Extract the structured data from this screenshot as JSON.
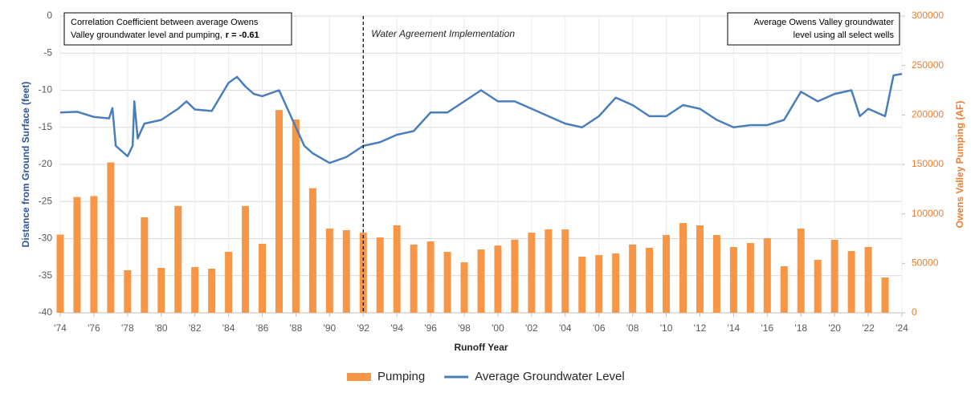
{
  "chart_data": {
    "type": "combo",
    "x_label": "Runoff Year",
    "y_label": "Distance from Ground Surface (feet)",
    "y2_label": "Owens Valley Pumping (AF)",
    "xlim": [
      1974,
      2024
    ],
    "xticks": [
      {
        "value": 1974,
        "label": "'74"
      },
      {
        "value": 1976,
        "label": "'76"
      },
      {
        "value": 1978,
        "label": "'78"
      },
      {
        "value": 1980,
        "label": "'80"
      },
      {
        "value": 1982,
        "label": "'82"
      },
      {
        "value": 1984,
        "label": "'84"
      },
      {
        "value": 1986,
        "label": "'86"
      },
      {
        "value": 1988,
        "label": "'88"
      },
      {
        "value": 1990,
        "label": "'90"
      },
      {
        "value": 1992,
        "label": "'92"
      },
      {
        "value": 1994,
        "label": "'94"
      },
      {
        "value": 1996,
        "label": "'96"
      },
      {
        "value": 1998,
        "label": "'98"
      },
      {
        "value": 2000,
        "label": "'00"
      },
      {
        "value": 2002,
        "label": "'02"
      },
      {
        "value": 2004,
        "label": "'04"
      },
      {
        "value": 2006,
        "label": "'06"
      },
      {
        "value": 2008,
        "label": "'08"
      },
      {
        "value": 2010,
        "label": "'10"
      },
      {
        "value": 2012,
        "label": "'12"
      },
      {
        "value": 2014,
        "label": "'14"
      },
      {
        "value": 2016,
        "label": "'16"
      },
      {
        "value": 2018,
        "label": "'18"
      },
      {
        "value": 2020,
        "label": "'20"
      },
      {
        "value": 2022,
        "label": "'22"
      },
      {
        "value": 2024,
        "label": "'24"
      }
    ],
    "ylim": [
      -40,
      0
    ],
    "yticks": [
      0,
      -5,
      -10,
      -15,
      -20,
      -25,
      -30,
      -35,
      -40
    ],
    "y2lim": [
      0,
      300000
    ],
    "y2ticks": [
      0,
      50000,
      100000,
      150000,
      200000,
      250000,
      300000
    ],
    "grid": true,
    "legend": "bottom",
    "series": [
      {
        "name": "Pumping",
        "type": "bar",
        "axis": "y2",
        "color": "#f79646",
        "x": [
          1974,
          1975,
          1976,
          1977,
          1978,
          1979,
          1980,
          1981,
          1982,
          1983,
          1984,
          1985,
          1986,
          1987,
          1988,
          1989,
          1990,
          1991,
          1992,
          1993,
          1994,
          1995,
          1996,
          1997,
          1998,
          1999,
          2000,
          2001,
          2002,
          2003,
          2004,
          2005,
          2006,
          2007,
          2008,
          2009,
          2010,
          2011,
          2012,
          2013,
          2014,
          2015,
          2016,
          2017,
          2018,
          2019,
          2020,
          2021,
          2022,
          2023
        ],
        "values": [
          79000,
          117000,
          118000,
          152000,
          43000,
          96500,
          45400,
          108000,
          46200,
          44600,
          61600,
          108000,
          69700,
          205000,
          195400,
          126000,
          85100,
          83500,
          81000,
          76200,
          88400,
          69000,
          72200,
          61600,
          51000,
          64000,
          68000,
          74000,
          81000,
          84300,
          84300,
          56800,
          58400,
          60000,
          69000,
          65700,
          78600,
          90800,
          88400,
          78600,
          66500,
          70500,
          75400,
          47000,
          85100,
          53500,
          73800,
          62400,
          66500,
          35700
        ]
      },
      {
        "name": "Average Groundwater Level",
        "type": "line",
        "color": "#4a7ebb",
        "x": [
          1974,
          1975,
          1976,
          1976.9,
          1977.1,
          1977.3,
          1978,
          1978.3,
          1978.4,
          1978.6,
          1979,
          1980,
          1981,
          1981.5,
          1982,
          1983,
          1984,
          1984.5,
          1985,
          1985.5,
          1986,
          1987,
          1987.5,
          1988,
          1988.5,
          1989,
          1990,
          1991,
          1992,
          1993,
          1994,
          1995,
          1996,
          1997,
          1998,
          1999,
          2000,
          2001,
          2002,
          2003,
          2004,
          2005,
          2006,
          2007,
          2008,
          2009,
          2010,
          2011,
          2012,
          2013,
          2014,
          2015,
          2016,
          2017,
          2018,
          2019,
          2020,
          2021,
          2021.5,
          2022,
          2023,
          2023.5,
          2024
        ],
        "values": [
          -13.0,
          -12.9,
          -13.6,
          -13.8,
          -12.4,
          -17.5,
          -18.9,
          -17.5,
          -11.5,
          -16.5,
          -14.5,
          -14.0,
          -12.5,
          -11.5,
          -12.6,
          -12.8,
          -9.0,
          -8.2,
          -9.5,
          -10.5,
          -10.8,
          -10.0,
          -12.5,
          -15.0,
          -17.5,
          -18.5,
          -19.8,
          -19.0,
          -17.5,
          -17.0,
          -16.0,
          -15.5,
          -13.0,
          -13.0,
          -11.5,
          -10.0,
          -11.5,
          -11.5,
          -12.5,
          -13.5,
          -14.5,
          -15.0,
          -13.5,
          -11.0,
          -12.0,
          -13.5,
          -13.5,
          -12.0,
          -12.5,
          -14.0,
          -15.0,
          -14.7,
          -14.7,
          -14.0,
          -10.2,
          -11.5,
          -10.5,
          -10.0,
          -13.5,
          -12.5,
          -13.5,
          -8.0,
          -7.8
        ]
      }
    ],
    "annotations": [
      {
        "lines": [
          "Correlation Coefficient between average Owens",
          "Valley groundwater level and pumping,"
        ],
        "bold": "r = -0.61"
      },
      {
        "lines": [
          "Average Owens Valley groundwater",
          "level using all select wells"
        ]
      }
    ],
    "vline": {
      "x": 1992,
      "label": "Water Agreement Implementation"
    }
  }
}
